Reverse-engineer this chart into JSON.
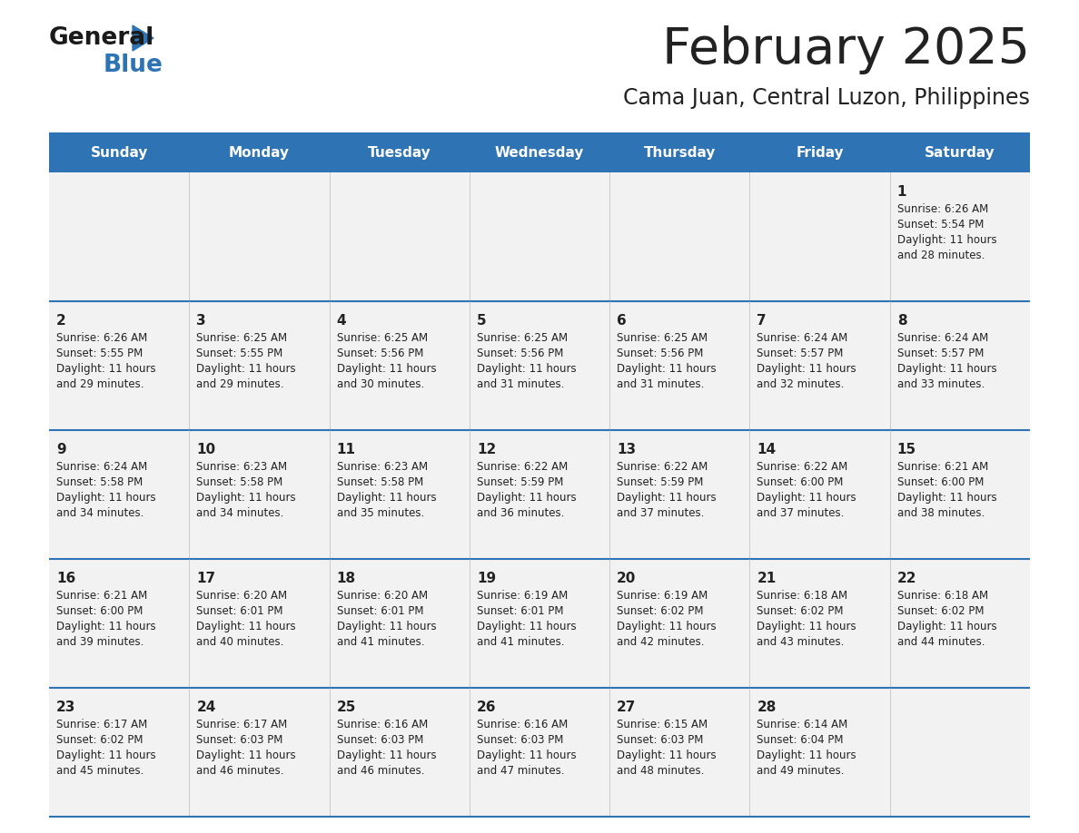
{
  "title": "February 2025",
  "subtitle": "Cama Juan, Central Luzon, Philippines",
  "header_bg": "#2E74B5",
  "header_text": "#FFFFFF",
  "row_bg": "#F2F2F2",
  "separator_color": "#2E74B5",
  "separator_light": "#C0C0C0",
  "text_color": "#222222",
  "day_headers": [
    "Sunday",
    "Monday",
    "Tuesday",
    "Wednesday",
    "Thursday",
    "Friday",
    "Saturday"
  ],
  "logo_color1": "#1A1A1A",
  "logo_color2": "#2E74B5",
  "weeks": [
    [
      {
        "day": null,
        "sunrise": null,
        "sunset": null,
        "daylight": null
      },
      {
        "day": null,
        "sunrise": null,
        "sunset": null,
        "daylight": null
      },
      {
        "day": null,
        "sunrise": null,
        "sunset": null,
        "daylight": null
      },
      {
        "day": null,
        "sunrise": null,
        "sunset": null,
        "daylight": null
      },
      {
        "day": null,
        "sunrise": null,
        "sunset": null,
        "daylight": null
      },
      {
        "day": null,
        "sunrise": null,
        "sunset": null,
        "daylight": null
      },
      {
        "day": 1,
        "sunrise": "6:26 AM",
        "sunset": "5:54 PM",
        "daylight": "11 hours\nand 28 minutes."
      }
    ],
    [
      {
        "day": 2,
        "sunrise": "6:26 AM",
        "sunset": "5:55 PM",
        "daylight": "11 hours\nand 29 minutes."
      },
      {
        "day": 3,
        "sunrise": "6:25 AM",
        "sunset": "5:55 PM",
        "daylight": "11 hours\nand 29 minutes."
      },
      {
        "day": 4,
        "sunrise": "6:25 AM",
        "sunset": "5:56 PM",
        "daylight": "11 hours\nand 30 minutes."
      },
      {
        "day": 5,
        "sunrise": "6:25 AM",
        "sunset": "5:56 PM",
        "daylight": "11 hours\nand 31 minutes."
      },
      {
        "day": 6,
        "sunrise": "6:25 AM",
        "sunset": "5:56 PM",
        "daylight": "11 hours\nand 31 minutes."
      },
      {
        "day": 7,
        "sunrise": "6:24 AM",
        "sunset": "5:57 PM",
        "daylight": "11 hours\nand 32 minutes."
      },
      {
        "day": 8,
        "sunrise": "6:24 AM",
        "sunset": "5:57 PM",
        "daylight": "11 hours\nand 33 minutes."
      }
    ],
    [
      {
        "day": 9,
        "sunrise": "6:24 AM",
        "sunset": "5:58 PM",
        "daylight": "11 hours\nand 34 minutes."
      },
      {
        "day": 10,
        "sunrise": "6:23 AM",
        "sunset": "5:58 PM",
        "daylight": "11 hours\nand 34 minutes."
      },
      {
        "day": 11,
        "sunrise": "6:23 AM",
        "sunset": "5:58 PM",
        "daylight": "11 hours\nand 35 minutes."
      },
      {
        "day": 12,
        "sunrise": "6:22 AM",
        "sunset": "5:59 PM",
        "daylight": "11 hours\nand 36 minutes."
      },
      {
        "day": 13,
        "sunrise": "6:22 AM",
        "sunset": "5:59 PM",
        "daylight": "11 hours\nand 37 minutes."
      },
      {
        "day": 14,
        "sunrise": "6:22 AM",
        "sunset": "6:00 PM",
        "daylight": "11 hours\nand 37 minutes."
      },
      {
        "day": 15,
        "sunrise": "6:21 AM",
        "sunset": "6:00 PM",
        "daylight": "11 hours\nand 38 minutes."
      }
    ],
    [
      {
        "day": 16,
        "sunrise": "6:21 AM",
        "sunset": "6:00 PM",
        "daylight": "11 hours\nand 39 minutes."
      },
      {
        "day": 17,
        "sunrise": "6:20 AM",
        "sunset": "6:01 PM",
        "daylight": "11 hours\nand 40 minutes."
      },
      {
        "day": 18,
        "sunrise": "6:20 AM",
        "sunset": "6:01 PM",
        "daylight": "11 hours\nand 41 minutes."
      },
      {
        "day": 19,
        "sunrise": "6:19 AM",
        "sunset": "6:01 PM",
        "daylight": "11 hours\nand 41 minutes."
      },
      {
        "day": 20,
        "sunrise": "6:19 AM",
        "sunset": "6:02 PM",
        "daylight": "11 hours\nand 42 minutes."
      },
      {
        "day": 21,
        "sunrise": "6:18 AM",
        "sunset": "6:02 PM",
        "daylight": "11 hours\nand 43 minutes."
      },
      {
        "day": 22,
        "sunrise": "6:18 AM",
        "sunset": "6:02 PM",
        "daylight": "11 hours\nand 44 minutes."
      }
    ],
    [
      {
        "day": 23,
        "sunrise": "6:17 AM",
        "sunset": "6:02 PM",
        "daylight": "11 hours\nand 45 minutes."
      },
      {
        "day": 24,
        "sunrise": "6:17 AM",
        "sunset": "6:03 PM",
        "daylight": "11 hours\nand 46 minutes."
      },
      {
        "day": 25,
        "sunrise": "6:16 AM",
        "sunset": "6:03 PM",
        "daylight": "11 hours\nand 46 minutes."
      },
      {
        "day": 26,
        "sunrise": "6:16 AM",
        "sunset": "6:03 PM",
        "daylight": "11 hours\nand 47 minutes."
      },
      {
        "day": 27,
        "sunrise": "6:15 AM",
        "sunset": "6:03 PM",
        "daylight": "11 hours\nand 48 minutes."
      },
      {
        "day": 28,
        "sunrise": "6:14 AM",
        "sunset": "6:04 PM",
        "daylight": "11 hours\nand 49 minutes."
      },
      {
        "day": null,
        "sunrise": null,
        "sunset": null,
        "daylight": null
      }
    ]
  ]
}
